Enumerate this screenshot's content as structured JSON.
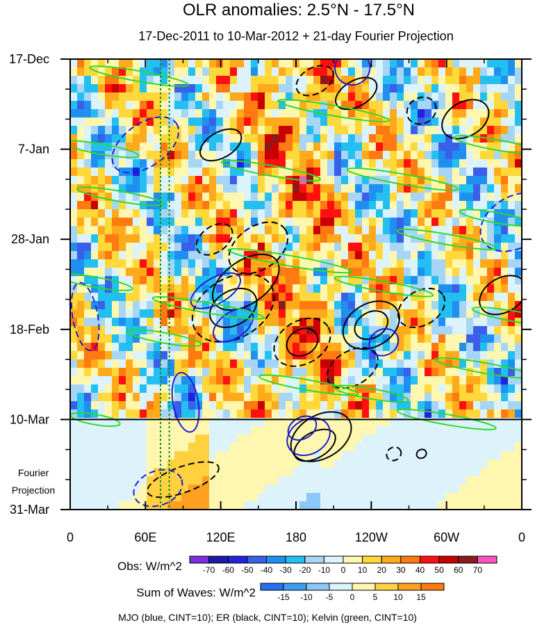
{
  "chart_data": {
    "type": "heatmap",
    "title": "OLR anomalies: 2.5°N - 17.5°N",
    "subtitle": "17-Dec-2011 to 10-Mar-2012 + 21-day Fourier Projection",
    "x_axis": {
      "ticks": [
        "0",
        "60E",
        "120E",
        "180",
        "120W",
        "60W",
        "0"
      ],
      "tick_degrees": [
        0,
        60,
        120,
        180,
        240,
        300,
        360
      ],
      "range_degrees": [
        0,
        360
      ]
    },
    "y_axis": {
      "ticks": [
        "17-Dec",
        "7-Jan",
        "28-Jan",
        "18-Feb",
        "10-Mar",
        "31-Mar"
      ],
      "tick_days": [
        0,
        21,
        42,
        63,
        84,
        105
      ],
      "range_days": [
        0,
        105
      ],
      "projection_label": [
        "Fourier",
        "Projection"
      ]
    },
    "projection_start_day": 84,
    "reference_longitudes": [
      72,
      79
    ],
    "obs_legend": {
      "label": "Obs: W/m^2",
      "levels": [
        "-70",
        "-60",
        "-50",
        "-40",
        "-30",
        "-20",
        "-10",
        "0",
        "10",
        "20",
        "30",
        "40",
        "50",
        "60",
        "70"
      ],
      "colors": [
        "#7b2fe0",
        "#1c1aa8",
        "#2222dd",
        "#3a5fe8",
        "#1f90f0",
        "#22bff0",
        "#a6d5f5",
        "#dcf3fb",
        "#fff7b0",
        "#ffd83a",
        "#ffaa1a",
        "#ff7a10",
        "#ff1010",
        "#c80000",
        "#8b1a1a",
        "#ff55c0"
      ]
    },
    "waves_legend": {
      "label": "Sum of Waves: W/m^2",
      "levels": [
        "-15",
        "-10",
        "-5",
        "0",
        "5",
        "10",
        "15"
      ],
      "colors": [
        "#2a6ff0",
        "#3aa0f5",
        "#8cc8f7",
        "#dcf3fb",
        "#fff7b0",
        "#ffd040",
        "#ffa020",
        "#ff7a10"
      ]
    },
    "footer": "MJO (blue, CINT=10); ER (black, CINT=10); Kelvin (green, CINT=10)",
    "series": [
      {
        "name": "MJO",
        "color": "#1a1ad0"
      },
      {
        "name": "ER",
        "color": "#000000"
      },
      {
        "name": "Kelvin",
        "color": "#2bd92b"
      }
    ]
  }
}
